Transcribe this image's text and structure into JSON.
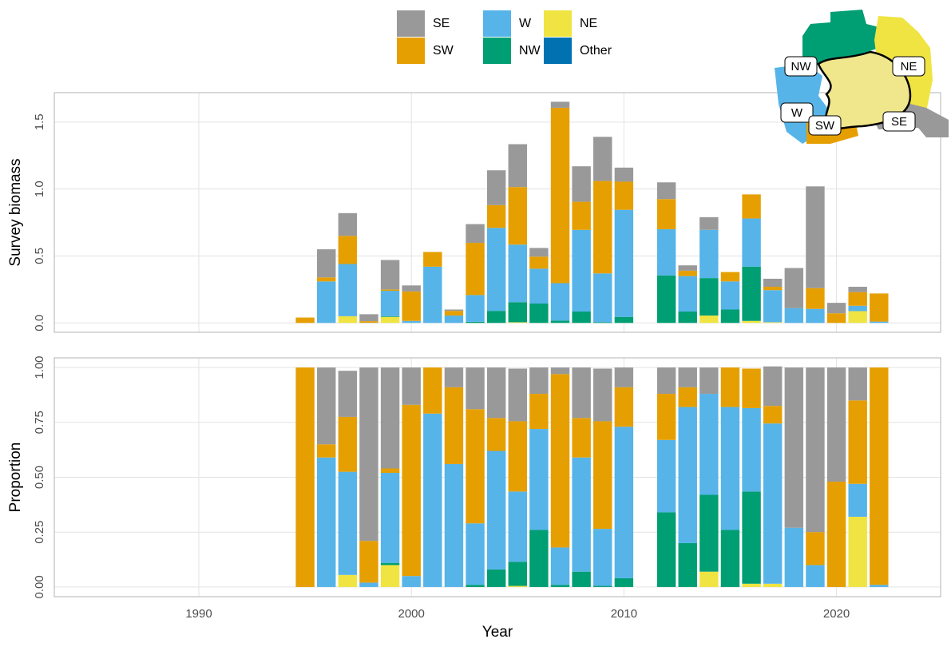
{
  "chart_data": [
    {
      "type": "stacked-bar",
      "ylabel": "Survey biomass",
      "x": [
        1995,
        1996,
        1997,
        1998,
        1999,
        2000,
        2001,
        2002,
        2003,
        2004,
        2005,
        2006,
        2007,
        2008,
        2009,
        2010,
        2011,
        2012,
        2013,
        2014,
        2015,
        2016,
        2017,
        2018,
        2019,
        2020,
        2021,
        2022
      ],
      "xlim": [
        1983.2,
        2024.9
      ],
      "xticks": [
        1990,
        2000,
        2010,
        2020
      ],
      "ylim": [
        -0.07,
        1.72
      ],
      "yticks": [
        {
          "value": 0,
          "label": "0.0"
        },
        0.5,
        {
          "value": 1,
          "label": "1.0"
        },
        1.5
      ],
      "grid": true,
      "series": [
        {
          "name": "SE",
          "color": "#999999",
          "values": [
            0,
            0.21,
            0.17,
            0.052,
            0.22,
            0.045,
            0,
            0.01,
            0.14,
            0.26,
            0.32,
            0.065,
            0.045,
            0.265,
            0.33,
            0.105,
            null,
            0.125,
            0.04,
            0.095,
            0,
            0,
            0.06,
            0.3,
            0.76,
            0.078,
            0.04,
            0
          ]
        },
        {
          "name": "SW",
          "color": "#E69F00",
          "values": [
            0.04,
            0.03,
            0.21,
            0.012,
            0.01,
            0.22,
            0.11,
            0.035,
            0.39,
            0.17,
            0.43,
            0.09,
            1.31,
            0.21,
            0.69,
            0.21,
            null,
            0.225,
            0.04,
            0,
            0.07,
            0.18,
            0.025,
            0,
            0.155,
            0.072,
            0.102,
            0.21
          ]
        },
        {
          "name": "W",
          "color": "#56B4E9",
          "values": [
            0,
            0.31,
            0.39,
            0.001,
            0.19,
            0.015,
            0.42,
            0.055,
            0.2,
            0.62,
            0.43,
            0.26,
            0.28,
            0.61,
            0.365,
            0.8,
            null,
            0.345,
            0.265,
            0.36,
            0.21,
            0.36,
            0.24,
            0.11,
            0.105,
            0,
            0.04,
            0.01
          ]
        },
        {
          "name": "NW",
          "color": "#009E73",
          "values": [
            0,
            0,
            0,
            0,
            0.005,
            0,
            0,
            0,
            0.008,
            0.09,
            0.15,
            0.145,
            0.017,
            0.085,
            0.005,
            0.045,
            null,
            0.355,
            0.085,
            0.28,
            0.1,
            0.405,
            0,
            0,
            0,
            0,
            0,
            0
          ]
        },
        {
          "name": "NE",
          "color": "#F0E442",
          "values": [
            0,
            0,
            0.05,
            0,
            0.045,
            0,
            0,
            0,
            0,
            0,
            0.005,
            0,
            0,
            0,
            0,
            0,
            null,
            0,
            0,
            0.055,
            0,
            0.015,
            0.005,
            0,
            0,
            0,
            0.088,
            0
          ]
        },
        {
          "name": "Other",
          "color": "#0072B2",
          "values": [
            0,
            0,
            0,
            0,
            0,
            0,
            0,
            0,
            0,
            0,
            0,
            0,
            0,
            0,
            0,
            0,
            null,
            0,
            0,
            0,
            0,
            0,
            0,
            0,
            0,
            0,
            0,
            0
          ]
        }
      ]
    },
    {
      "type": "stacked-bar",
      "ylabel": "Proportion",
      "xlabel": "Year",
      "x": [
        1995,
        1996,
        1997,
        1998,
        1999,
        2000,
        2001,
        2002,
        2003,
        2004,
        2005,
        2006,
        2007,
        2008,
        2009,
        2010,
        2011,
        2012,
        2013,
        2014,
        2015,
        2016,
        2017,
        2018,
        2019,
        2020,
        2021,
        2022
      ],
      "xlim": [
        1983.2,
        2024.9
      ],
      "xticks": [
        1990,
        2000,
        2010,
        2020
      ],
      "ylim": [
        -0.044,
        1.044
      ],
      "yticks": [
        {
          "value": 0,
          "label": "0.00"
        },
        0.25,
        {
          "value": 0.5,
          "label": "0.50"
        },
        0.75,
        {
          "value": 1,
          "label": "1.00"
        }
      ],
      "grid": true,
      "series": [
        {
          "name": "SE",
          "color": "#999999",
          "values": [
            0,
            0.35,
            0.21,
            0.79,
            0.46,
            0.17,
            0,
            0.09,
            0.19,
            0.23,
            0.24,
            0.12,
            0.03,
            0.23,
            0.24,
            0.09,
            null,
            0.12,
            0.09,
            0.12,
            0,
            0,
            0.18,
            0.73,
            0.75,
            0.52,
            0.15,
            0
          ]
        },
        {
          "name": "SW",
          "color": "#E69F00",
          "values": [
            1,
            0.06,
            0.25,
            0.19,
            0.02,
            0.78,
            0.21,
            0.35,
            0.52,
            0.15,
            0.32,
            0.16,
            0.79,
            0.18,
            0.49,
            0.18,
            null,
            0.21,
            0.09,
            0,
            0.18,
            0.18,
            0.08,
            0,
            0.15,
            0.48,
            0.38,
            0.99
          ]
        },
        {
          "name": "W",
          "color": "#56B4E9",
          "values": [
            0,
            0.59,
            0.47,
            0.02,
            0.41,
            0.05,
            0.79,
            0.56,
            0.28,
            0.54,
            0.32,
            0.46,
            0.17,
            0.52,
            0.26,
            0.69,
            null,
            0.33,
            0.62,
            0.46,
            0.56,
            0.38,
            0.73,
            0.27,
            0.1,
            0,
            0.15,
            0.01
          ]
        },
        {
          "name": "NW",
          "color": "#009E73",
          "values": [
            0,
            0,
            0,
            0,
            0.01,
            0,
            0,
            0,
            0.01,
            0.08,
            0.11,
            0.26,
            0.01,
            0.07,
            0.005,
            0.04,
            null,
            0.34,
            0.2,
            0.35,
            0.26,
            0.42,
            0,
            0,
            0,
            0,
            0,
            0
          ]
        },
        {
          "name": "NE",
          "color": "#F0E442",
          "values": [
            0,
            0,
            0.055,
            0,
            0.1,
            0,
            0,
            0,
            0,
            0,
            0.005,
            0,
            0,
            0,
            0,
            0,
            null,
            0,
            0,
            0.07,
            0,
            0.015,
            0.015,
            0,
            0,
            0,
            0.32,
            0
          ]
        },
        {
          "name": "Other",
          "color": "#0072B2",
          "values": [
            0,
            0,
            0,
            0,
            0,
            0,
            0,
            0,
            0,
            0,
            0,
            0,
            0,
            0,
            0,
            0,
            null,
            0,
            0,
            0,
            0,
            0,
            0,
            0,
            0,
            0,
            0,
            0
          ]
        }
      ]
    }
  ],
  "inset_map": {
    "regions": [
      "NW",
      "NE",
      "W",
      "SW",
      "SE"
    ]
  }
}
